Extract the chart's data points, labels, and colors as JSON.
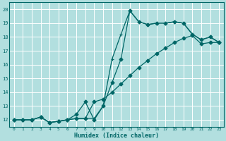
{
  "xlabel": "Humidex (Indice chaleur)",
  "bg_color": "#b2dfdf",
  "line_color": "#006666",
  "grid_color": "#ffffff",
  "xlim": [
    -0.5,
    23.5
  ],
  "ylim": [
    11.5,
    20.5
  ],
  "xticks": [
    0,
    1,
    2,
    3,
    4,
    5,
    6,
    7,
    8,
    9,
    10,
    11,
    12,
    13,
    14,
    15,
    16,
    17,
    18,
    19,
    20,
    21,
    22,
    23
  ],
  "yticks": [
    12,
    13,
    14,
    15,
    16,
    17,
    18,
    19,
    20
  ],
  "line_spiky_x": [
    0,
    1,
    2,
    3,
    4,
    5,
    6,
    7,
    8,
    9,
    10,
    11,
    12,
    13,
    14,
    15,
    16,
    17,
    18,
    19,
    20,
    21,
    22,
    23
  ],
  "line_spiky_y": [
    12,
    12,
    12,
    12.2,
    11.8,
    11.9,
    12.0,
    12.1,
    12.1,
    12.1,
    13.0,
    16.4,
    18.2,
    19.9,
    19.1,
    18.9,
    19.0,
    19.0,
    19.1,
    19.0,
    18.2,
    17.8,
    18.0,
    17.6
  ],
  "line_spiky_marker": "+",
  "line_zigzag_x": [
    0,
    1,
    2,
    3,
    4,
    5,
    6,
    7,
    8,
    9,
    10,
    11,
    12,
    13,
    14,
    15,
    16,
    17,
    18,
    19,
    20,
    21,
    22,
    23
  ],
  "line_zigzag_y": [
    12,
    12,
    12,
    12.2,
    11.8,
    11.9,
    12.0,
    12.4,
    13.3,
    12.0,
    13.0,
    14.7,
    16.4,
    19.9,
    19.1,
    18.9,
    19.0,
    19.0,
    19.1,
    19.0,
    18.2,
    17.8,
    18.0,
    17.6
  ],
  "line_zigzag_marker": "D",
  "line_smooth_x": [
    0,
    1,
    2,
    3,
    4,
    5,
    6,
    7,
    8,
    9,
    10,
    11,
    12,
    13,
    14,
    15,
    16,
    17,
    18,
    19,
    20,
    21,
    22,
    23
  ],
  "line_smooth_y": [
    12,
    12,
    12,
    12.2,
    11.8,
    11.9,
    12.0,
    12.1,
    12.1,
    13.3,
    13.5,
    14.0,
    14.6,
    15.2,
    15.8,
    16.3,
    16.8,
    17.2,
    17.6,
    17.9,
    18.1,
    17.5,
    17.6,
    17.6
  ],
  "line_smooth_marker": "D"
}
